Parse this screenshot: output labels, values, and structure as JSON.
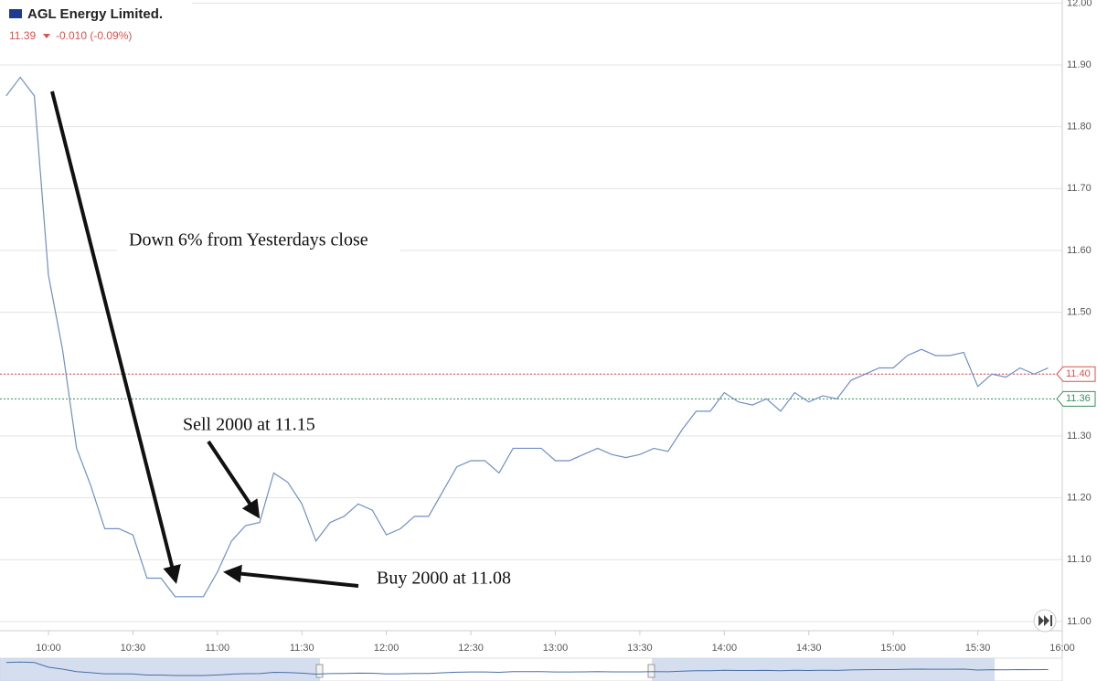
{
  "chart_data": {
    "type": "line",
    "title": "AGL Energy Limited.",
    "price": "11.39",
    "change": "-0.010 (-0.09%)",
    "annotations": [
      "Down 6% from Yesterdays close",
      "Sell 2000 at 11.15",
      "Buy 2000 at 11.08"
    ],
    "color": "#6f8fc4",
    "x": [
      585,
      590,
      595,
      600,
      605,
      610,
      615,
      620,
      625,
      630,
      635,
      640,
      645,
      650,
      655,
      660,
      665,
      670,
      675,
      680,
      685,
      690,
      695,
      700,
      705,
      710,
      715,
      720,
      725,
      730,
      735,
      740,
      745,
      750,
      755,
      760,
      765,
      770,
      775,
      780,
      785,
      790,
      795,
      800,
      805,
      810,
      815,
      820,
      825,
      830,
      835,
      840,
      845,
      850,
      855,
      860,
      865,
      870,
      875,
      880,
      885,
      890,
      895,
      900,
      905,
      910,
      915,
      920,
      925,
      930,
      935,
      940,
      945,
      950,
      955
    ],
    "values": [
      11.85,
      11.88,
      11.85,
      11.56,
      11.44,
      11.28,
      11.22,
      11.15,
      11.15,
      11.14,
      11.07,
      11.07,
      11.04,
      11.04,
      11.04,
      11.08,
      11.13,
      11.155,
      11.16,
      11.24,
      11.225,
      11.19,
      11.13,
      11.16,
      11.17,
      11.19,
      11.18,
      11.14,
      11.15,
      11.17,
      11.17,
      11.21,
      11.25,
      11.26,
      11.26,
      11.24,
      11.28,
      11.28,
      11.28,
      11.26,
      11.26,
      11.27,
      11.28,
      11.27,
      11.265,
      11.27,
      11.28,
      11.275,
      11.31,
      11.34,
      11.34,
      11.37,
      11.355,
      11.35,
      11.36,
      11.34,
      11.37,
      11.355,
      11.365,
      11.36,
      11.39,
      11.4,
      11.41,
      11.41,
      11.43,
      11.44,
      11.43,
      11.43,
      11.435,
      11.38,
      11.4,
      11.395,
      11.41,
      11.4,
      11.41
    ],
    "xlim": [
      582.8,
      960
    ],
    "ylim": [
      10.985,
      12.005
    ],
    "xticks": [
      {
        "value": 600,
        "label": "10:00"
      },
      {
        "value": 630,
        "label": "10:30"
      },
      {
        "value": 660,
        "label": "11:00"
      },
      {
        "value": 690,
        "label": "11:30"
      },
      {
        "value": 720,
        "label": "12:00"
      },
      {
        "value": 750,
        "label": "12:30"
      },
      {
        "value": 780,
        "label": "13:00"
      },
      {
        "value": 810,
        "label": "13:30"
      },
      {
        "value": 840,
        "label": "14:00"
      },
      {
        "value": 870,
        "label": "14:30"
      },
      {
        "value": 900,
        "label": "15:00"
      },
      {
        "value": 930,
        "label": "15:30"
      },
      {
        "value": 960,
        "label": "16:00"
      }
    ],
    "yticks": [
      {
        "value": 11,
        "label": "11.00"
      },
      {
        "value": 11.1,
        "label": "11.10"
      },
      {
        "value": 11.2,
        "label": "11.20"
      },
      {
        "value": 11.3,
        "label": "11.30"
      },
      {
        "value": 11.4,
        "label": "11.40"
      },
      {
        "value": 11.5,
        "label": "11.50"
      },
      {
        "value": 11.6,
        "label": "11.60"
      },
      {
        "value": 11.7,
        "label": "11.70"
      },
      {
        "value": 11.8,
        "label": "11.80"
      },
      {
        "value": 11.9,
        "label": "11.90"
      },
      {
        "value": 12,
        "label": "12.00"
      }
    ],
    "grid": true,
    "price_lines": [
      {
        "value": 11.4,
        "label": "11.40",
        "color": "#d9534f"
      },
      {
        "value": 11.36,
        "label": "11.36",
        "color": "#3a8f5c"
      }
    ]
  }
}
